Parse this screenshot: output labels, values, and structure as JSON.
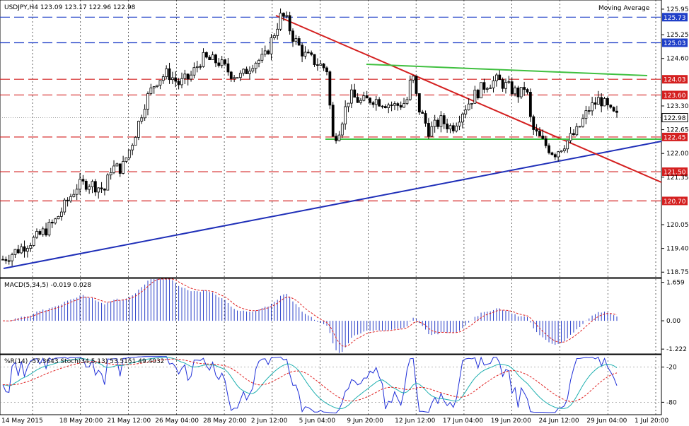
{
  "chart_data": {
    "type": "candlestick",
    "symbol_label": "USDJPY,H4",
    "ohlc_label": "123.09 123.17 122.96 122.98",
    "indicator_label": "Moving Average",
    "price_axis": {
      "ticks": [
        "125.95",
        "125.25",
        "124.60",
        "123.30",
        "122.65",
        "122.00",
        "121.35",
        "120.05",
        "119.40",
        "118.75"
      ],
      "ylim": [
        118.6,
        126.2
      ]
    },
    "levels": [
      {
        "value": 125.73,
        "label": "125.73",
        "color": "#1f3fc8",
        "tag_color": "#1f3fc8"
      },
      {
        "value": 125.03,
        "label": "125.03",
        "color": "#1f3fc8",
        "tag_color": "#1f3fc8"
      },
      {
        "value": 124.03,
        "label": "124.03",
        "color": "#d42020",
        "tag_color": "#d42020"
      },
      {
        "value": 123.6,
        "label": "123.60",
        "color": "#d42020",
        "tag_color": "#d42020"
      },
      {
        "value": 122.45,
        "label": "122.45",
        "color": "#d42020",
        "tag_color": "#d42020"
      },
      {
        "value": 121.5,
        "label": "121.50",
        "color": "#d42020",
        "tag_color": "#d42020"
      },
      {
        "value": 120.7,
        "label": "120.70",
        "color": "#d42020",
        "tag_color": "#d42020"
      }
    ],
    "last_price": {
      "value": 122.98,
      "label": "122.98"
    },
    "time_labels": [
      "14 May 2015",
      "18 May 20:00",
      "21 May 12:00",
      "26 May 04:00",
      "28 May 20:00",
      "2 Jun 12:00",
      "5 Jun 04:00",
      "9 Jun 20:00",
      "12 Jun 12:00",
      "17 Jun 04:00",
      "19 Jun 20:00",
      "24 Jun 12:00",
      "29 Jun 04:00",
      "1 Jul 20:00"
    ],
    "price_path": [
      [
        0,
        119.1
      ],
      [
        3,
        119.4
      ],
      [
        6,
        119.7
      ],
      [
        9,
        120.1
      ],
      [
        11,
        120.6
      ],
      [
        13,
        121.1
      ],
      [
        15,
        121.2
      ],
      [
        18,
        121.0
      ],
      [
        19,
        121.6
      ],
      [
        21,
        121.6
      ],
      [
        23,
        122.4
      ],
      [
        25,
        123.4
      ],
      [
        27,
        124.0
      ],
      [
        29,
        124.2
      ],
      [
        31,
        123.9
      ],
      [
        33,
        124.1
      ],
      [
        35,
        124.6
      ],
      [
        38,
        124.5
      ],
      [
        40,
        124.2
      ],
      [
        42,
        124.1
      ],
      [
        44,
        124.5
      ],
      [
        46,
        124.6
      ],
      [
        48,
        125.4
      ],
      [
        49,
        125.8
      ],
      [
        50,
        125.6
      ],
      [
        51,
        125.2
      ],
      [
        53,
        124.7
      ],
      [
        55,
        124.5
      ],
      [
        57,
        124.3
      ],
      [
        58,
        122.4
      ],
      [
        59,
        122.6
      ],
      [
        61,
        123.6
      ],
      [
        63,
        123.4
      ],
      [
        65,
        123.5
      ],
      [
        67,
        123.4
      ],
      [
        69,
        123.3
      ],
      [
        71,
        123.4
      ],
      [
        72,
        124.2
      ],
      [
        73,
        123.3
      ],
      [
        75,
        122.6
      ],
      [
        77,
        122.9
      ],
      [
        79,
        122.7
      ],
      [
        81,
        123.2
      ],
      [
        83,
        123.6
      ],
      [
        85,
        123.9
      ],
      [
        87,
        124.0
      ],
      [
        89,
        123.8
      ],
      [
        91,
        123.6
      ],
      [
        92,
        123.9
      ],
      [
        93,
        122.7
      ],
      [
        95,
        122.3
      ],
      [
        97,
        122.0
      ],
      [
        99,
        122.3
      ],
      [
        101,
        122.6
      ],
      [
        103,
        123.2
      ],
      [
        105,
        123.5
      ],
      [
        107,
        123.1
      ],
      [
        108,
        123.0
      ]
    ],
    "macd": {
      "label": "MACD(5,34,5) -0.019 0.028",
      "ticks": [
        "1.659",
        "0.00",
        "-1.222"
      ],
      "ylim": [
        -1.4,
        1.8
      ]
    },
    "wpr": {
      "label": "%R(14) -57.3643  Stoch(34,5,13) 53.5151 49.4032",
      "ticks": [
        "-20",
        "-80"
      ]
    }
  }
}
